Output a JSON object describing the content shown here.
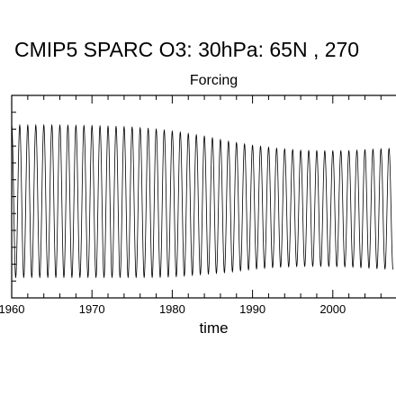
{
  "chart_data": {
    "type": "line",
    "title": "CMIP5 SPARC O3: 30hPa: 65N , 270",
    "subtitle": "Forcing",
    "xlabel": "time",
    "ylabel": "",
    "x_ticks": [
      "1960",
      "1970",
      "1980",
      "1990",
      "2000"
    ],
    "xlim": [
      1960,
      2007.5
    ],
    "ylim": [
      0,
      1
    ],
    "y_scale_note": "relative (y tick labels not visible)",
    "series": [
      {
        "line_color": "#000000",
        "seasonal_cycle": "one oscillation per year",
        "years": [
          1960,
          1965,
          1970,
          1975,
          1978,
          1981,
          1984,
          1987,
          1990,
          1993,
          1996,
          1999,
          2002,
          2005,
          2007.5
        ],
        "annual_max": [
          0.855,
          0.855,
          0.852,
          0.845,
          0.835,
          0.82,
          0.8,
          0.775,
          0.755,
          0.74,
          0.73,
          0.727,
          0.728,
          0.735,
          0.74
        ],
        "annual_min": [
          0.1,
          0.1,
          0.1,
          0.1,
          0.1,
          0.105,
          0.115,
          0.125,
          0.14,
          0.15,
          0.155,
          0.155,
          0.152,
          0.145,
          0.14
        ]
      }
    ],
    "grid": false,
    "legend": "none"
  }
}
